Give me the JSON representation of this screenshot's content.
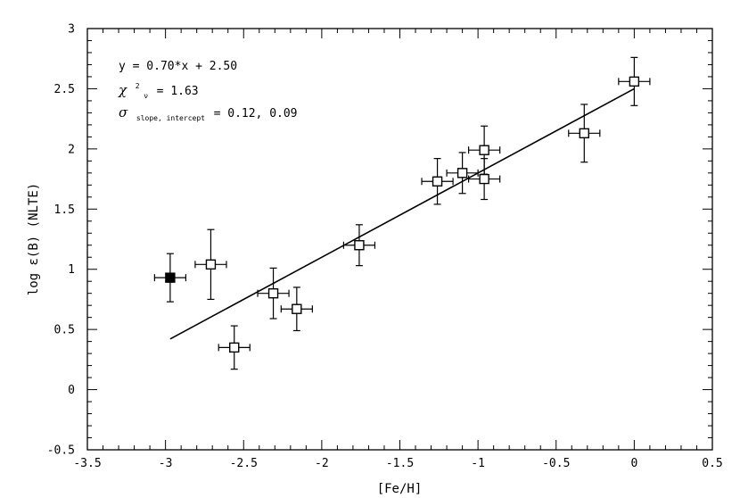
{
  "chart_data": {
    "type": "scatter",
    "xlabel": "[Fe/H]",
    "ylabel": "log ε(B) (NLTE)",
    "xlim": [
      -3.5,
      0.5
    ],
    "ylim": [
      -0.5,
      3
    ],
    "xticks": [
      -3.5,
      -3,
      -2.5,
      -2,
      -1.5,
      -1,
      -0.5,
      0,
      0.5
    ],
    "yticks": [
      -0.5,
      0,
      0.5,
      1,
      1.5,
      2,
      2.5,
      3
    ],
    "xtick_labels": [
      "-3.5",
      "-3",
      "-2.5",
      "-2",
      "-1.5",
      "-1",
      "-0.5",
      "0",
      "0.5"
    ],
    "ytick_labels": [
      "-0.5",
      "0",
      "0.5",
      "1",
      "1.5",
      "2",
      "2.5",
      "3"
    ],
    "grid": false,
    "points": [
      {
        "x": -2.97,
        "y": 0.93,
        "xerr": 0.1,
        "yerr": 0.2,
        "filled": true
      },
      {
        "x": -2.71,
        "y": 1.04,
        "xerr": 0.1,
        "yerr": 0.29,
        "filled": false
      },
      {
        "x": -2.56,
        "y": 0.35,
        "xerr": 0.1,
        "yerr": 0.18,
        "filled": false
      },
      {
        "x": -2.31,
        "y": 0.8,
        "xerr": 0.1,
        "yerr": 0.21,
        "filled": false
      },
      {
        "x": -2.16,
        "y": 0.67,
        "xerr": 0.1,
        "yerr": 0.18,
        "filled": false
      },
      {
        "x": -1.76,
        "y": 1.2,
        "xerr": 0.1,
        "yerr": 0.17,
        "filled": false
      },
      {
        "x": -1.26,
        "y": 1.73,
        "xerr": 0.1,
        "yerr": 0.19,
        "filled": false
      },
      {
        "x": -1.1,
        "y": 1.8,
        "xerr": 0.1,
        "yerr": 0.17,
        "filled": false
      },
      {
        "x": -0.96,
        "y": 1.99,
        "xerr": 0.1,
        "yerr": 0.2,
        "filled": false
      },
      {
        "x": -0.96,
        "y": 1.75,
        "xerr": 0.1,
        "yerr": 0.17,
        "filled": false
      },
      {
        "x": -0.32,
        "y": 2.13,
        "xerr": 0.1,
        "yerr": 0.24,
        "filled": false
      },
      {
        "x": 0.0,
        "y": 2.56,
        "xerr": 0.1,
        "yerr": 0.2,
        "filled": false
      }
    ],
    "fit_line": {
      "slope": 0.7,
      "intercept": 2.5,
      "x_range": [
        -2.97,
        0.0
      ]
    },
    "annotations": {
      "equation": "y = 0.70*x + 2.50",
      "chi_symbol": "χ",
      "chi_sup": "2",
      "chi_sub": "ν",
      "chi_value": " = 1.63",
      "sigma_symbol": "σ",
      "sigma_sub": "slope, intercept",
      "sigma_value": " = 0.12, 0.09"
    }
  }
}
